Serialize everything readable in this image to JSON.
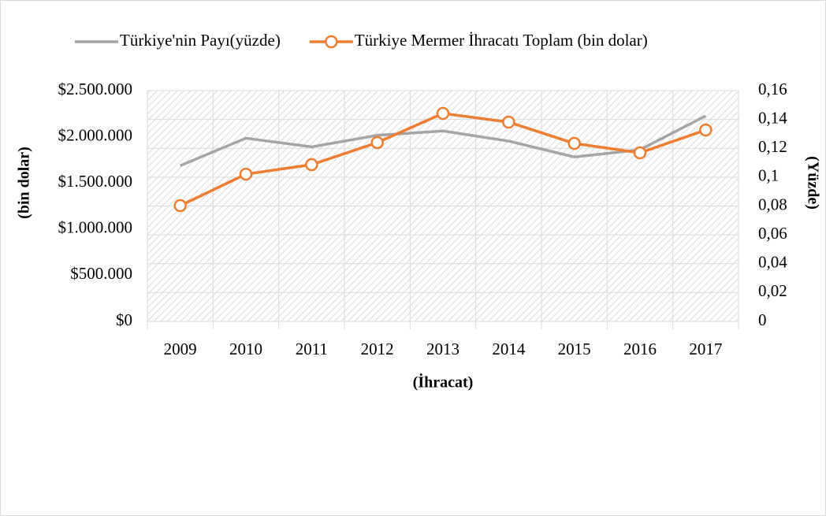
{
  "chart_data": {
    "type": "line",
    "axis_labels": {
      "y": "(bin dolar)",
      "y2": "(Yüzde)",
      "x": "(İhracat)"
    },
    "categories": [
      "2009",
      "2010",
      "2011",
      "2012",
      "2013",
      "2014",
      "2015",
      "2016",
      "2017"
    ],
    "series": [
      {
        "name": "Türkiye'nin Payı(yüzde)",
        "color": "#a5a5a5",
        "axis": "y2",
        "marker": false,
        "values": [
          0.108,
          0.127,
          0.121,
          0.129,
          0.132,
          0.125,
          0.114,
          0.119,
          0.1425
        ]
      },
      {
        "name": "Türkiye Mermer İhracatı Toplam (bin dolar)",
        "color": "#ed7d31",
        "axis": "y",
        "marker": true,
        "values": [
          1254000,
          1595000,
          1698000,
          1937000,
          2253000,
          2159000,
          1928000,
          1826000,
          2073000
        ]
      }
    ],
    "ylim": [
      0,
      2500000
    ],
    "yticks": [
      {
        "value": 0,
        "label": "$0"
      },
      {
        "value": 500000,
        "label": "$500.000"
      },
      {
        "value": 1000000,
        "label": "$1.000.000"
      },
      {
        "value": 1500000,
        "label": "$1.500.000"
      },
      {
        "value": 2000000,
        "label": "$2.000.000"
      },
      {
        "value": 2500000,
        "label": "$2.500.000"
      }
    ],
    "y2lim": [
      0,
      0.16
    ],
    "y2ticks": [
      0,
      {
        "value": 0.02,
        "label": "0,02"
      },
      {
        "value": 0.04,
        "label": "0,04"
      },
      {
        "value": 0.06,
        "label": "0,06"
      },
      {
        "value": 0.08,
        "label": "0,08"
      },
      {
        "value": 0.1,
        "label": "0,1"
      },
      {
        "value": 0.12,
        "label": "0,12"
      },
      {
        "value": 0.14,
        "label": "0,14"
      },
      {
        "value": 0.16,
        "label": "0,16"
      }
    ],
    "grid": true,
    "legend": "top"
  }
}
